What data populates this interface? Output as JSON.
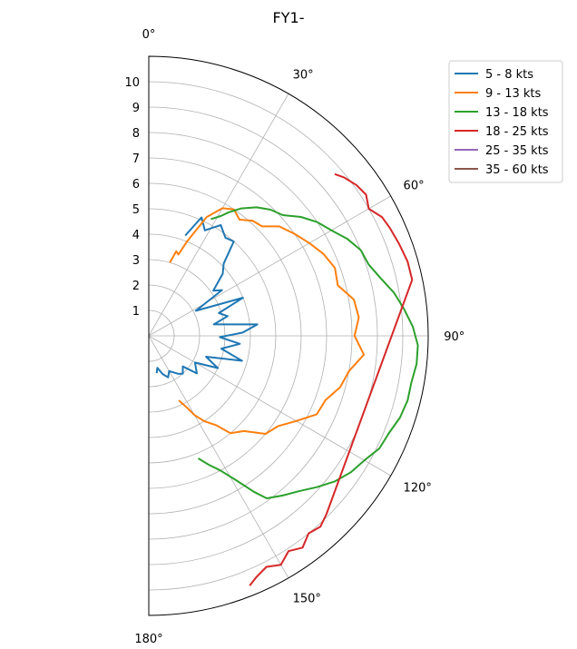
{
  "chart_data": {
    "type": "line",
    "projection": "polar-half",
    "title": "FY1-",
    "angle_ticks": [
      {
        "value": 0,
        "label": "0°"
      },
      {
        "value": 30,
        "label": "30°"
      },
      {
        "value": 60,
        "label": "60°"
      },
      {
        "value": 90,
        "label": "90°"
      },
      {
        "value": 120,
        "label": "120°"
      },
      {
        "value": 150,
        "label": "150°"
      },
      {
        "value": 180,
        "label": "180°"
      }
    ],
    "radial_ticks": [
      {
        "value": 1,
        "label": "1"
      },
      {
        "value": 2,
        "label": "2"
      },
      {
        "value": 3,
        "label": "3"
      },
      {
        "value": 4,
        "label": "4"
      },
      {
        "value": 5,
        "label": "5"
      },
      {
        "value": 6,
        "label": "6"
      },
      {
        "value": 7,
        "label": "7"
      },
      {
        "value": 8,
        "label": "8"
      },
      {
        "value": 9,
        "label": "9"
      },
      {
        "value": 10,
        "label": "10"
      }
    ],
    "rlim": [
      0,
      11
    ],
    "thetalim": [
      0,
      180
    ],
    "grid": true,
    "legend_position": "top-right",
    "series": [
      {
        "name": "5 - 8 kts",
        "color": "#1f77b4",
        "points": [
          [
            20,
            4.2
          ],
          [
            24,
            5.1
          ],
          [
            28,
            4.7
          ],
          [
            33,
            5.2
          ],
          [
            38,
            4.9
          ],
          [
            42,
            5.0
          ],
          [
            46,
            4.1
          ],
          [
            50,
            3.8
          ],
          [
            55,
            3.1
          ],
          [
            58,
            3.4
          ],
          [
            62,
            2.1
          ],
          [
            68,
            4.0
          ],
          [
            72,
            2.9
          ],
          [
            76,
            3.2
          ],
          [
            80,
            2.6
          ],
          [
            84,
            4.3
          ],
          [
            88,
            3.7
          ],
          [
            91,
            2.8
          ],
          [
            95,
            3.6
          ],
          [
            100,
            2.9
          ],
          [
            105,
            3.8
          ],
          [
            110,
            2.4
          ],
          [
            115,
            3.0
          ],
          [
            120,
            2.1
          ],
          [
            128,
            2.4
          ],
          [
            132,
            1.8
          ],
          [
            138,
            2.0
          ],
          [
            142,
            1.9
          ],
          [
            150,
            1.6
          ],
          [
            155,
            1.8
          ],
          [
            160,
            1.6
          ],
          [
            165,
            1.3
          ],
          [
            168,
            1.5
          ]
        ]
      },
      {
        "name": "9 - 13 kts",
        "color": "#ff7f0e",
        "points": [
          [
            16,
            3.0
          ],
          [
            18,
            3.5
          ],
          [
            20,
            3.4
          ],
          [
            22,
            4.0
          ],
          [
            26,
            5.2
          ],
          [
            30,
            5.8
          ],
          [
            34,
            6.0
          ],
          [
            38,
            5.8
          ],
          [
            42,
            6.1
          ],
          [
            46,
            6.2
          ],
          [
            50,
            6.7
          ],
          [
            55,
            7.0
          ],
          [
            60,
            7.3
          ],
          [
            65,
            7.6
          ],
          [
            70,
            7.8
          ],
          [
            75,
            7.7
          ],
          [
            80,
            8.2
          ],
          [
            85,
            8.3
          ],
          [
            90,
            8.1
          ],
          [
            95,
            8.5
          ],
          [
            100,
            8.0
          ],
          [
            105,
            7.8
          ],
          [
            110,
            7.4
          ],
          [
            115,
            7.3
          ],
          [
            120,
            6.7
          ],
          [
            125,
            6.2
          ],
          [
            130,
            6.0
          ],
          [
            135,
            5.3
          ],
          [
            140,
            5.0
          ],
          [
            143,
            4.4
          ],
          [
            147,
            4.0
          ],
          [
            150,
            3.6
          ],
          [
            152,
            3.2
          ],
          [
            155,
            2.8
          ]
        ]
      },
      {
        "name": "13 - 18 kts",
        "color": "#2ca02c",
        "points": [
          [
            28,
            5.2
          ],
          [
            31,
            5.5
          ],
          [
            33,
            5.8
          ],
          [
            36,
            6.2
          ],
          [
            40,
            6.6
          ],
          [
            44,
            6.9
          ],
          [
            48,
            7.1
          ],
          [
            52,
            7.6
          ],
          [
            56,
            8.0
          ],
          [
            60,
            8.3
          ],
          [
            64,
            8.7
          ],
          [
            68,
            9.0
          ],
          [
            72,
            9.1
          ],
          [
            76,
            9.4
          ],
          [
            80,
            9.8
          ],
          [
            84,
            10.1
          ],
          [
            88,
            10.4
          ],
          [
            92,
            10.6
          ],
          [
            96,
            10.6
          ],
          [
            100,
            10.5
          ],
          [
            104,
            10.5
          ],
          [
            108,
            10.4
          ],
          [
            112,
            10.2
          ],
          [
            116,
            10.1
          ],
          [
            120,
            9.8
          ],
          [
            124,
            9.6
          ],
          [
            128,
            9.3
          ],
          [
            132,
            8.9
          ],
          [
            136,
            8.5
          ],
          [
            140,
            8.2
          ],
          [
            144,
            7.9
          ],
          [
            146,
            7.4
          ],
          [
            149,
            6.6
          ],
          [
            152,
            6.0
          ],
          [
            155,
            5.6
          ],
          [
            158,
            5.2
          ]
        ]
      },
      {
        "name": "18 - 25 kts",
        "color": "#d62728",
        "points": [
          [
            49,
            9.7
          ],
          [
            51,
            9.9
          ],
          [
            54,
            10.1
          ],
          [
            57,
            10.2
          ],
          [
            60,
            10.0
          ],
          [
            63,
            10.3
          ],
          [
            66,
            10.4
          ],
          [
            70,
            10.5
          ],
          [
            74,
            10.6
          ],
          [
            78,
            10.6
          ],
          [
            135,
            9.9
          ],
          [
            138,
            10.1
          ],
          [
            141,
            10.0
          ],
          [
            144,
            10.3
          ],
          [
            147,
            10.1
          ],
          [
            150,
            10.4
          ],
          [
            153,
            10.2
          ],
          [
            156,
            10.4
          ],
          [
            158,
            10.6
          ]
        ]
      },
      {
        "name": "25 - 35 kts",
        "color": "#9467bd",
        "points": []
      },
      {
        "name": "35 - 60 kts",
        "color": "#8c564b",
        "points": []
      }
    ]
  }
}
